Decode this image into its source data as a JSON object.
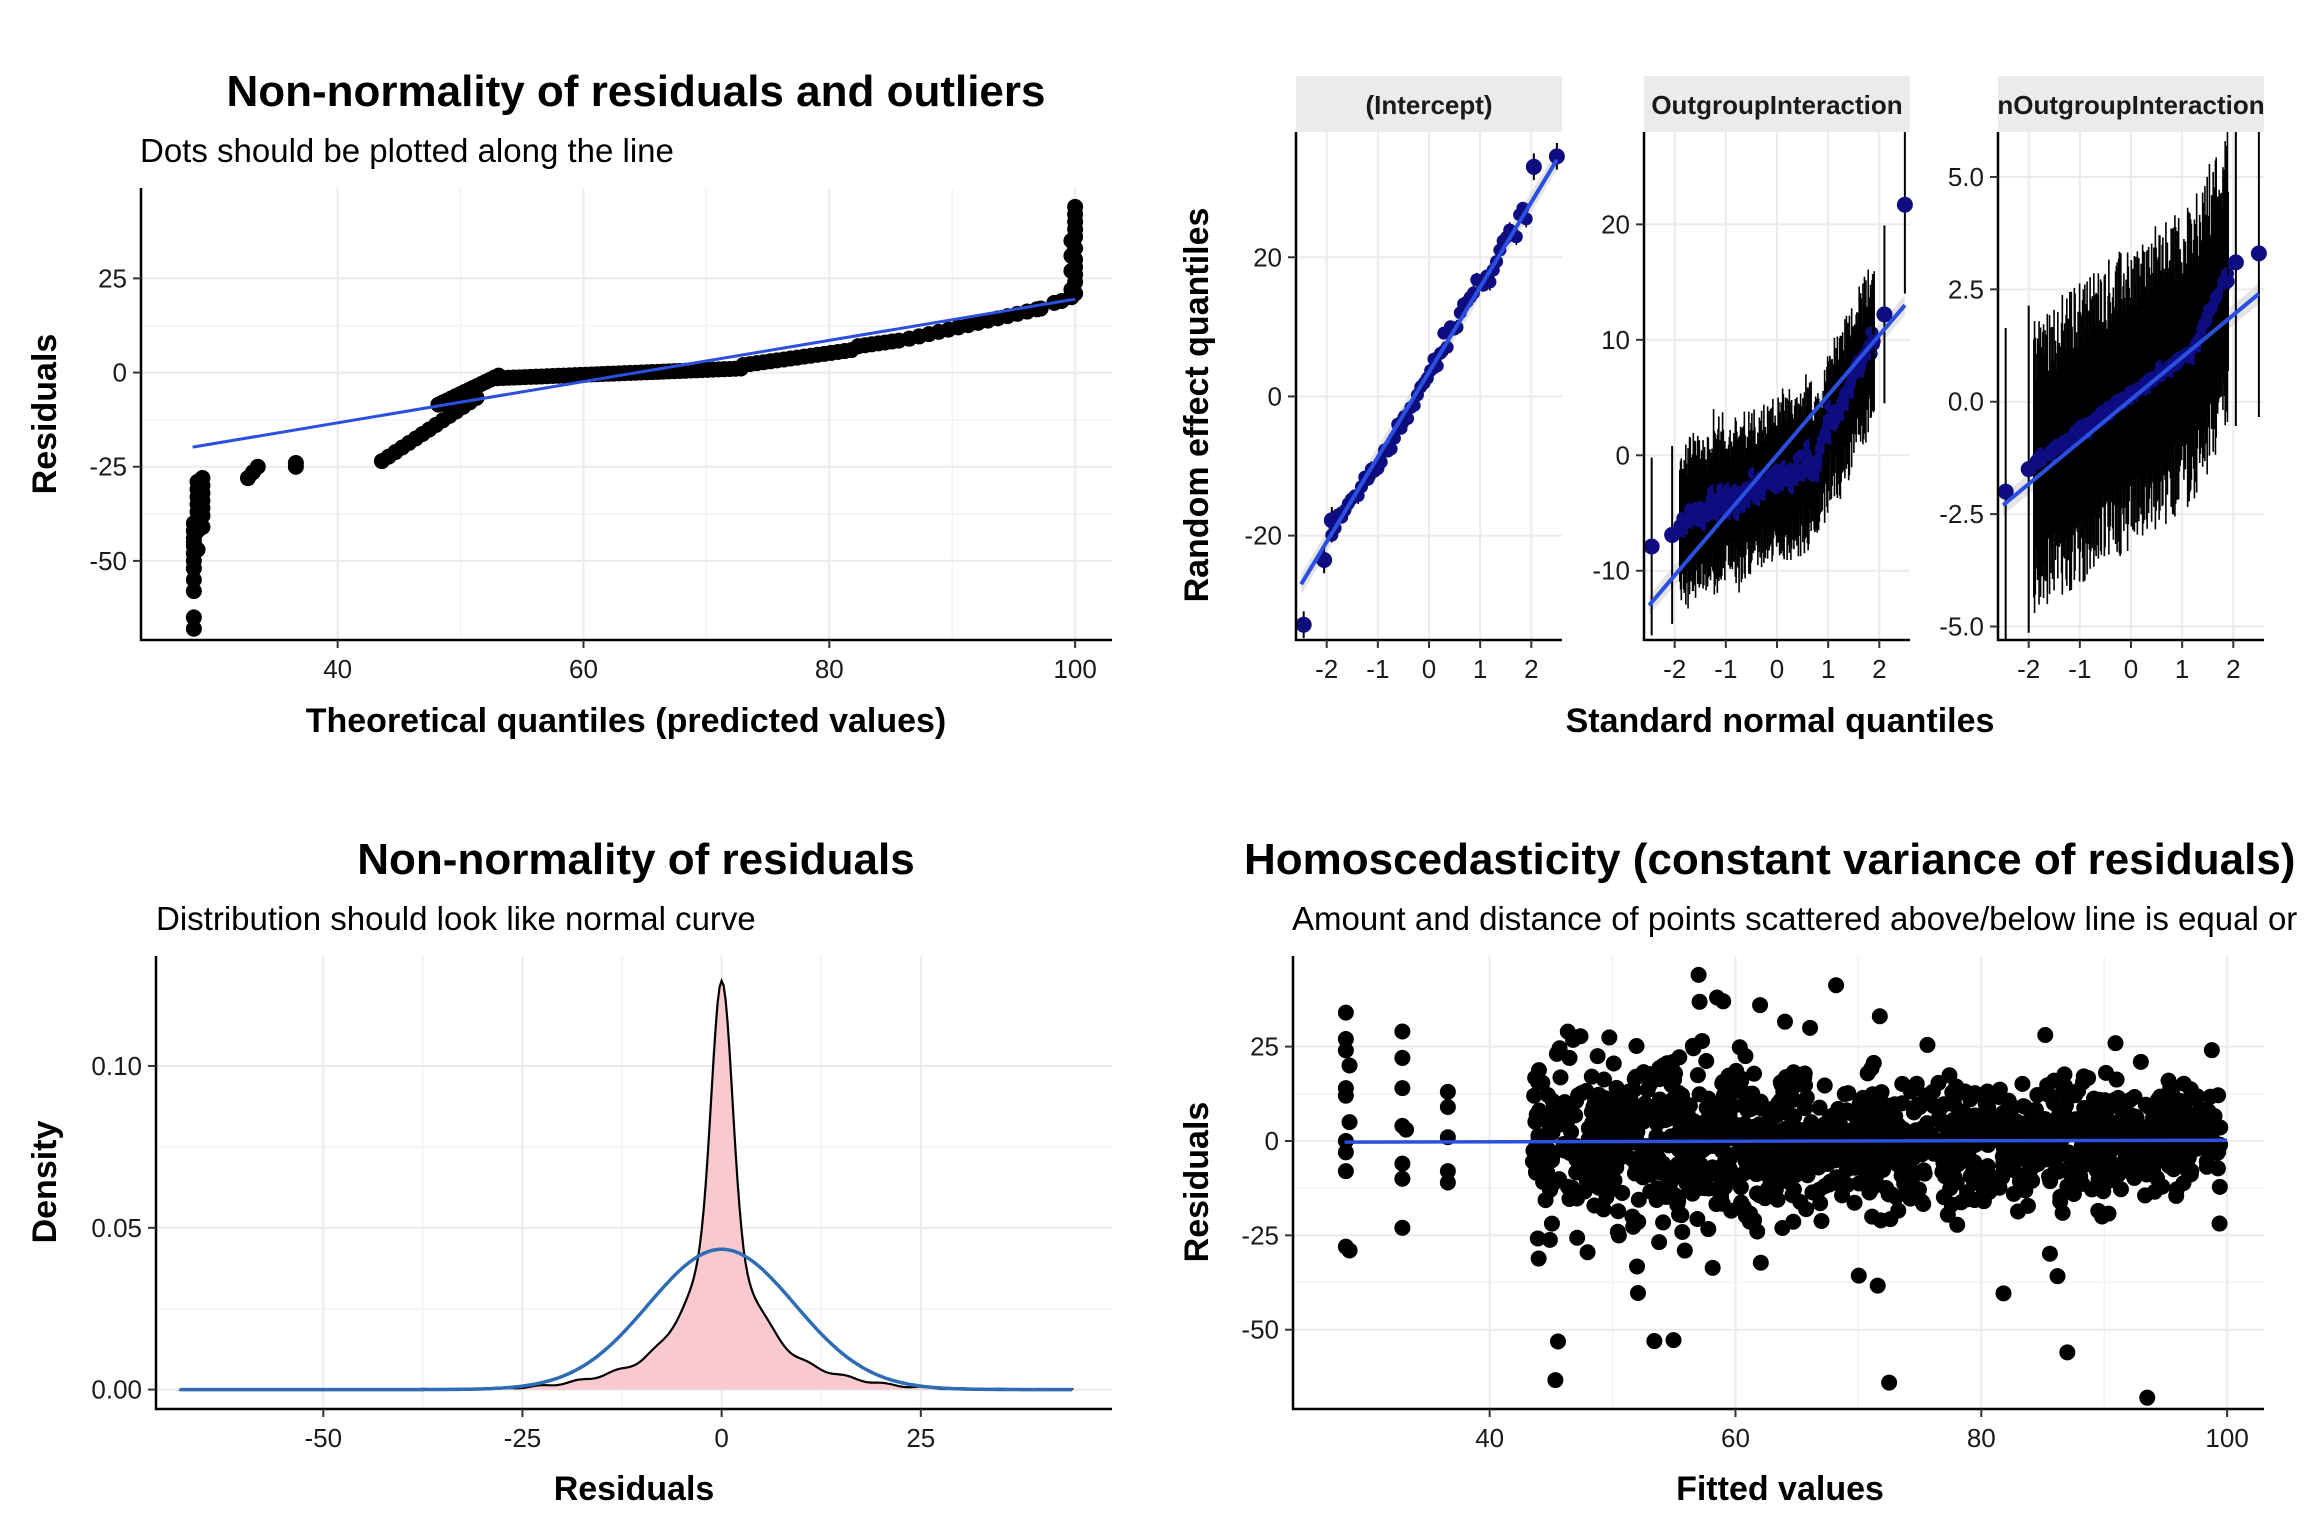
{
  "chart_data": [
    {
      "id": "qq",
      "type": "scatter",
      "title": "Non-normality of residuals and outliers",
      "subtitle": "Dots should be plotted along the line",
      "xlabel": "Theoretical quantiles (predicted values)",
      "ylabel": "Residuals",
      "xlim": [
        24,
        103
      ],
      "ylim": [
        -71,
        49
      ],
      "xticks": [
        40,
        60,
        80,
        100
      ],
      "yticks": [
        -50,
        -25,
        0,
        25
      ],
      "xtick_labels": [
        "40",
        "60",
        "80",
        "100"
      ],
      "ytick_labels": [
        "-50",
        "-25",
        "0",
        "25"
      ],
      "line": [
        [
          28.2,
          -19.8
        ],
        [
          100,
          19.5
        ]
      ],
      "grid": true,
      "point_color": "#000000",
      "line_color": "#2b4fe0"
    },
    {
      "id": "re",
      "type": "scatter",
      "ylabel": "Random effect quantiles",
      "xlabel": "Standard normal quantiles",
      "point_color": "#0d0d80",
      "line_color": "#2b4fe0",
      "panels": [
        {
          "strip": "(Intercept)",
          "xlim": [
            -2.6,
            2.6
          ],
          "ylim": [
            -35,
            38
          ],
          "xticks": [
            -2,
            -1,
            0,
            1,
            2
          ],
          "xtick_labels": [
            "-2",
            "-1",
            "0",
            "1",
            "2"
          ],
          "yticks": [
            -20,
            0,
            20
          ],
          "ytick_labels": [
            "-20",
            "0",
            "20"
          ],
          "line": [
            [
              -2.5,
              -27
            ],
            [
              2.5,
              34
            ]
          ],
          "points": [
            [
              -2.45,
              -32.8
            ],
            [
              -2.05,
              -23.5
            ],
            [
              -1.9,
              -17.8
            ],
            [
              2.05,
              33
            ],
            [
              2.5,
              34.5
            ]
          ]
        },
        {
          "strip": "OutgroupInteraction",
          "xlim": [
            -2.6,
            2.6
          ],
          "ylim": [
            -16,
            28
          ],
          "xticks": [
            -2,
            -1,
            0,
            1,
            2
          ],
          "xtick_labels": [
            "-2",
            "-1",
            "0",
            "1",
            "2"
          ],
          "yticks": [
            -10,
            0,
            10,
            20
          ],
          "ytick_labels": [
            "-10",
            "0",
            "10",
            "20"
          ],
          "line": [
            [
              -2.5,
              -13
            ],
            [
              2.5,
              13
            ]
          ],
          "points": [
            [
              -2.45,
              -7.9
            ],
            [
              -2.05,
              -6.9
            ],
            [
              2.1,
              12.2
            ],
            [
              2.5,
              21.7
            ]
          ]
        },
        {
          "strip": "nOutgroupInteraction",
          "xlim": [
            -2.6,
            2.6
          ],
          "ylim": [
            -5.3,
            6.0
          ],
          "xticks": [
            -2,
            -1,
            0,
            1,
            2
          ],
          "xtick_labels": [
            "-2",
            "-1",
            "0",
            "1",
            "2"
          ],
          "yticks": [
            -5,
            -2.5,
            0,
            2.5,
            5
          ],
          "ytick_labels": [
            "-5.0",
            "-2.5",
            "0.0",
            "2.5",
            "5.0"
          ],
          "line": [
            [
              -2.5,
              -2.3
            ],
            [
              2.5,
              2.4
            ]
          ],
          "points": [
            [
              -2.45,
              -2.0
            ],
            [
              -2.0,
              -1.5
            ],
            [
              2.05,
              3.1
            ],
            [
              2.5,
              3.3
            ]
          ]
        }
      ]
    },
    {
      "id": "dens",
      "type": "area",
      "title": "Non-normality of residuals",
      "subtitle": "Distribution should look like normal curve",
      "xlabel": "Residuals",
      "ylabel": "Density",
      "xlim": [
        -71,
        49
      ],
      "ylim": [
        -0.006,
        0.134
      ],
      "xticks": [
        -50,
        -25,
        0,
        25
      ],
      "xtick_labels": [
        "-50",
        "-25",
        "0",
        "25"
      ],
      "yticks": [
        0,
        0.05,
        0.1
      ],
      "ytick_labels": [
        "0.00",
        "0.05",
        "0.10"
      ],
      "x_range": [
        -68,
        44
      ],
      "density_peak": 0.127,
      "normal_sd": 9.2,
      "fill_color": "#f8c9cf",
      "curve_color": "#2e6db4"
    },
    {
      "id": "homo",
      "type": "scatter",
      "title": "Homoscedasticity (constant variance of residuals)",
      "subtitle": "Amount and distance of points scattered above/below line is equal or randomly spread",
      "xlabel": "Fitted values",
      "ylabel": "Residuals",
      "xlim": [
        24,
        103
      ],
      "ylim": [
        -71,
        49
      ],
      "xticks": [
        40,
        60,
        80,
        100
      ],
      "xtick_labels": [
        "40",
        "60",
        "80",
        "100"
      ],
      "yticks": [
        -50,
        -25,
        0,
        25
      ],
      "ytick_labels": [
        "-50",
        "-25",
        "0",
        "25"
      ],
      "line": [
        [
          28.2,
          -0.3
        ],
        [
          100,
          0.2
        ]
      ],
      "point_color": "#000000",
      "line_color": "#2b4fe0"
    }
  ]
}
